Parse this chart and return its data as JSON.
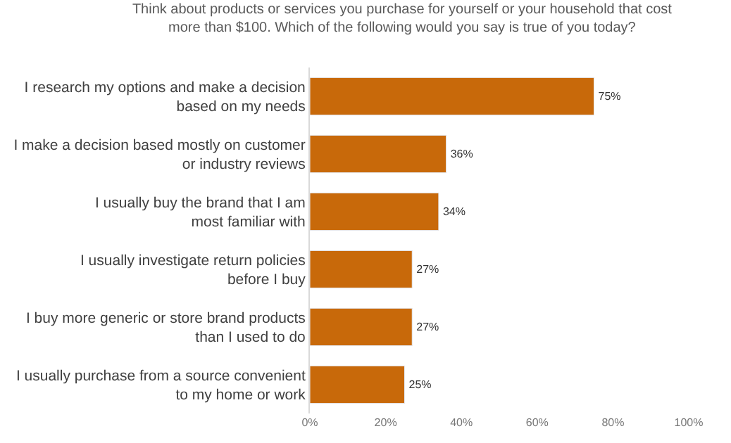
{
  "chart_data": {
    "type": "bar",
    "orientation": "horizontal",
    "title": "Think about products or services you purchase for yourself or your household that cost\nmore than $100. Which of the following would you say is true of you today?",
    "categories": [
      "I research my options and make a decision\nbased on my needs",
      "I make a decision based mostly on customer\nor industry reviews",
      "I usually buy the brand that I am\nmost familiar with",
      "I usually investigate return policies\nbefore I buy",
      "I buy more generic or store brand products\nthan I used to do",
      "I usually purchase from a source convenient\nto my home or work"
    ],
    "values": [
      75,
      36,
      34,
      27,
      27,
      25
    ],
    "value_labels": [
      "75%",
      "36%",
      "34%",
      "27%",
      "27%",
      "25%"
    ],
    "color": "#c8690a",
    "xlim": [
      0,
      100
    ],
    "xticks": [
      {
        "value": 0,
        "label": "0%"
      },
      {
        "value": 20,
        "label": "20%"
      },
      {
        "value": 40,
        "label": "40%"
      },
      {
        "value": 60,
        "label": "60%"
      },
      {
        "value": 80,
        "label": "80%"
      },
      {
        "value": 100,
        "label": "100%"
      }
    ],
    "data_labels": false
  }
}
